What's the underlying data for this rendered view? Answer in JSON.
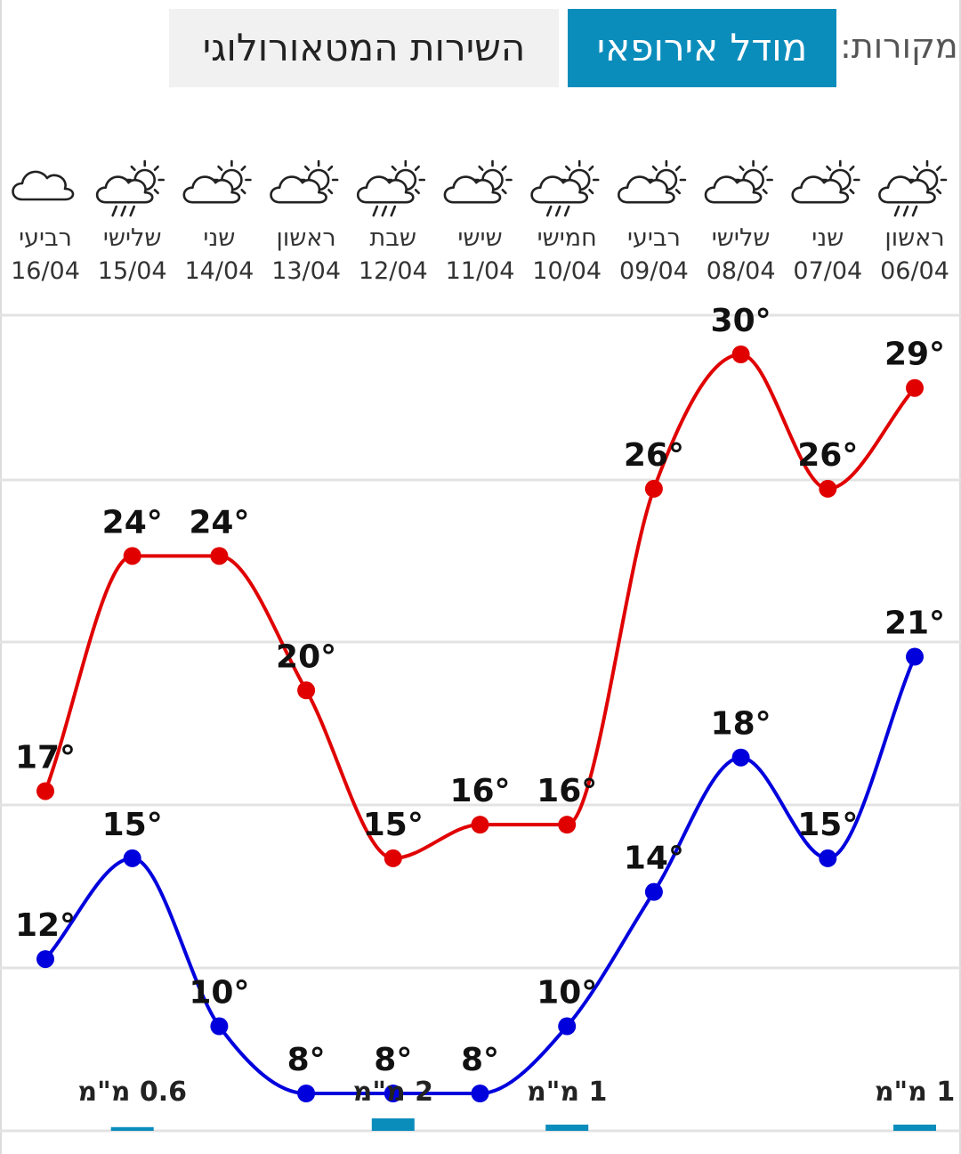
{
  "header": {
    "sources_label": "מקורות:",
    "tabs": [
      {
        "label": "מודל אירופאי",
        "active": true
      },
      {
        "label": "השירות המטאורולוגי",
        "active": false
      }
    ]
  },
  "colors": {
    "accent": "#0b8dbc",
    "max_temp": "#e00000",
    "min_temp": "#0000dd",
    "precip_bar": "#0b8dbc",
    "grid": "#e3e3e3"
  },
  "chart_data": {
    "type": "line",
    "title": "",
    "xlabel": "",
    "ylabel": "",
    "grid": true,
    "x_direction": "right-to-left",
    "days": [
      {
        "day": "ראשון",
        "date": "06/04",
        "icon": "partly-cloudy-rain-icon"
      },
      {
        "day": "שני",
        "date": "07/04",
        "icon": "partly-cloudy-icon"
      },
      {
        "day": "שלישי",
        "date": "08/04",
        "icon": "partly-cloudy-icon"
      },
      {
        "day": "רביעי",
        "date": "09/04",
        "icon": "partly-cloudy-icon"
      },
      {
        "day": "חמישי",
        "date": "10/04",
        "icon": "partly-cloudy-rain-icon"
      },
      {
        "day": "שישי",
        "date": "11/04",
        "icon": "partly-cloudy-icon"
      },
      {
        "day": "שבת",
        "date": "12/04",
        "icon": "partly-cloudy-rain-icon"
      },
      {
        "day": "ראשון",
        "date": "13/04",
        "icon": "partly-cloudy-icon"
      },
      {
        "day": "שני",
        "date": "14/04",
        "icon": "partly-cloudy-icon"
      },
      {
        "day": "שלישי",
        "date": "15/04",
        "icon": "partly-cloudy-rain-icon"
      },
      {
        "day": "רביעי",
        "date": "16/04",
        "icon": "cloud-icon"
      }
    ],
    "series": [
      {
        "key": "max",
        "values": [
          29,
          26,
          30,
          26,
          16,
          16,
          15,
          20,
          24,
          24,
          17
        ]
      },
      {
        "key": "min",
        "values": [
          21,
          15,
          18,
          14,
          10,
          8,
          8,
          8,
          10,
          15,
          12
        ]
      }
    ],
    "temp_suffix": "°",
    "ylim": [
      4,
      34
    ],
    "precipitation": [
      {
        "date": "06/04",
        "value": 1,
        "label": "1 מ\"מ"
      },
      {
        "date": "10/04",
        "value": 1,
        "label": "1 מ\"מ"
      },
      {
        "date": "12/04",
        "value": 2,
        "label": "2 מ\"מ"
      },
      {
        "date": "15/04",
        "value": 0.6,
        "label": "0.6 מ\"מ"
      }
    ]
  }
}
